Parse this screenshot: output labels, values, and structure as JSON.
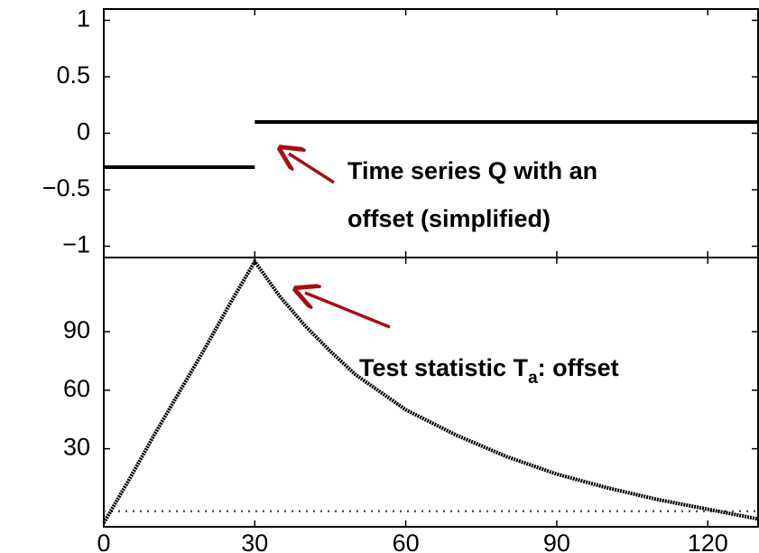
{
  "chart_data": [
    {
      "type": "line",
      "xlim": [
        0,
        130
      ],
      "ylim": [
        -1.1,
        1.1
      ],
      "yticks": [
        1,
        0.5,
        0,
        {
          "value": -0.5,
          "label": "−0.5"
        },
        {
          "value": -1,
          "label": "−1"
        }
      ],
      "x": [
        0,
        30,
        30,
        30,
        130
      ],
      "series": [
        {
          "color": "#000000",
          "values": [
            -0.3,
            -0.3,
            null,
            0.1,
            0.1
          ]
        }
      ],
      "annotation": {
        "lines": [
          "Time series Q with an",
          "offset (simplified)"
        ],
        "color": "#a50f15"
      }
    },
    {
      "type": "line",
      "xlim": [
        0,
        130
      ],
      "ylim": [
        -10,
        128
      ],
      "xticks": [
        0,
        30,
        60,
        90,
        120
      ],
      "yticks": [
        30,
        60,
        90
      ],
      "x": [
        0,
        5,
        10,
        15,
        20,
        25,
        30,
        35,
        40,
        45,
        50,
        60,
        70,
        80,
        90,
        100,
        110,
        120,
        130
      ],
      "series": [
        {
          "color": "#000000",
          "values": [
            -8,
            14,
            37,
            59,
            81,
            104,
            126,
            108,
            93,
            80,
            68,
            50,
            37,
            26,
            17,
            10,
            4,
            -1,
            -6
          ]
        }
      ],
      "threshold": -2,
      "annotation": {
        "text": "Test statistic T",
        "subscript": "a",
        "suffix": ": offset",
        "color": "#a50f15"
      }
    }
  ]
}
